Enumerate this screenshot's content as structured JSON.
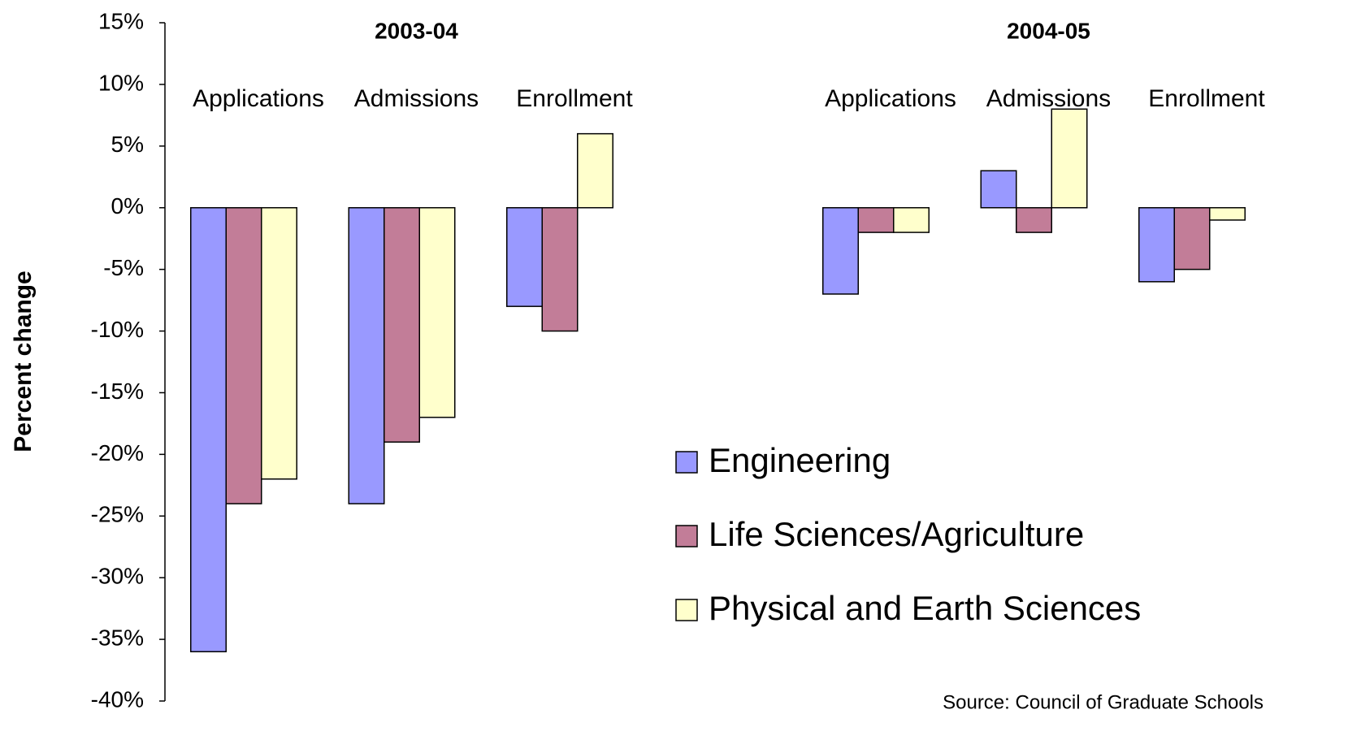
{
  "chart_data": {
    "type": "bar",
    "group_labels": [
      "2003-04",
      "2004-05"
    ],
    "categories": [
      "Applications",
      "Admissions",
      "Enrollment",
      "Applications",
      "Admissions",
      "Enrollment"
    ],
    "series": [
      {
        "name": "Engineering",
        "color": "#9999ff",
        "values": [
          -36,
          -24,
          -8,
          -7,
          3,
          -6
        ]
      },
      {
        "name": "Life Sciences/Agriculture",
        "color": "#c27d98",
        "values": [
          -24,
          -19,
          -10,
          -2,
          -2,
          -5
        ]
      },
      {
        "name": "Physical and Earth Sciences",
        "color": "#ffffcc",
        "values": [
          -22,
          -17,
          6,
          -2,
          8,
          -1
        ]
      }
    ],
    "ylabel": "Percent change",
    "ylim": [
      -40,
      15
    ],
    "yticks": [
      {
        "value": -40,
        "label": "-40%"
      },
      {
        "value": -35,
        "label": "-35%"
      },
      {
        "value": -30,
        "label": "-30%"
      },
      {
        "value": -25,
        "label": "-25%"
      },
      {
        "value": -20,
        "label": "-20%"
      },
      {
        "value": -15,
        "label": "-15%"
      },
      {
        "value": -10,
        "label": "-10%"
      },
      {
        "value": -5,
        "label": "-5%"
      },
      {
        "value": 0,
        "label": "0%"
      },
      {
        "value": 5,
        "label": "5%"
      },
      {
        "value": 10,
        "label": "10%"
      },
      {
        "value": 15,
        "label": "15%"
      }
    ],
    "grid": false,
    "source": "Source: Council of Graduate Schools"
  }
}
